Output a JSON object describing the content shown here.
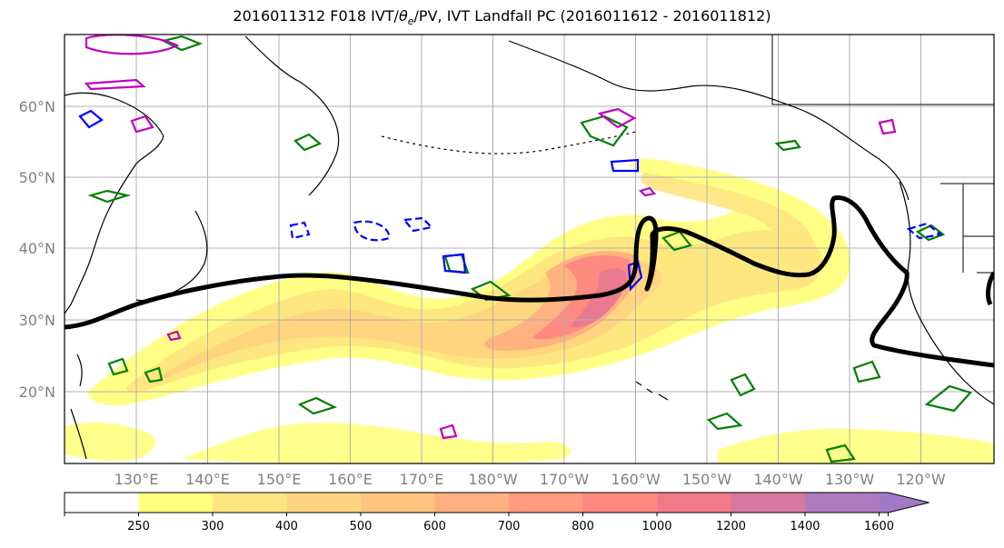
{
  "title": {
    "prefix": "2016011312 F018 IVT/",
    "theta": "θ",
    "theta_sub": "e",
    "suffix": "/PV, IVT Landfall PC (2016011612 - 2016011812)"
  },
  "map": {
    "lat_labels": [
      "60°N",
      "50°N",
      "40°N",
      "30°N",
      "20°N"
    ],
    "lon_labels": [
      "130°E",
      "140°E",
      "150°E",
      "160°E",
      "170°E",
      "180°W",
      "170°W",
      "160°W",
      "150°W",
      "140°W",
      "130°W",
      "120°W"
    ],
    "label_color": "#808080"
  },
  "colorbar": {
    "ticks": [
      "250",
      "300",
      "400",
      "500",
      "600",
      "700",
      "800",
      "1000",
      "1200",
      "1400",
      "1600"
    ],
    "colors": [
      "#ffffff",
      "#ffff80",
      "#ffe680",
      "#ffd480",
      "#ffc480",
      "#ffb080",
      "#ff9c80",
      "#ff8880",
      "#f07a88",
      "#d87aa0",
      "#b07ac0",
      "#a07ac8"
    ]
  },
  "contour_colors": {
    "landfall_pc": "#000000",
    "theta_e": "#008000",
    "pv_positive": "#c000c0",
    "pv_negative": "#0000ff"
  }
}
